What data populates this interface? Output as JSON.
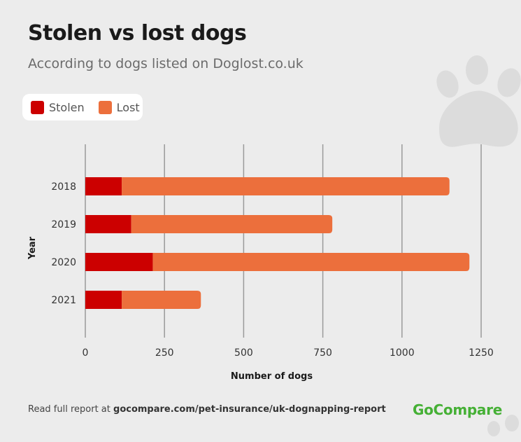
{
  "title": "Stolen vs lost dogs",
  "subtitle": "According to dogs listed on Doglost.co.uk",
  "legend": [
    {
      "label": "Stolen",
      "color": "#cc0000"
    },
    {
      "label": "Lost",
      "color": "#ec6f3c"
    }
  ],
  "footer": {
    "prefix": "Read full report at ",
    "link": "gocompare.com/pet-insurance/uk-dognapping-report"
  },
  "brand": "GoCompare",
  "decorative_icons": [
    "paw-print-icon"
  ],
  "chart_data": {
    "type": "bar",
    "orientation": "horizontal",
    "stacked": true,
    "title": "Stolen vs lost dogs",
    "subtitle": "According to dogs listed on Doglost.co.uk",
    "xlabel": "Number of dogs",
    "ylabel": "Year",
    "categories": [
      "2018",
      "2019",
      "2020",
      "2021"
    ],
    "series": [
      {
        "name": "Stolen",
        "color": "#cc0000",
        "values": [
          115,
          145,
          213,
          115
        ]
      },
      {
        "name": "Lost",
        "color": "#ec6f3c",
        "values": [
          1035,
          635,
          1000,
          250
        ]
      }
    ],
    "xticks": [
      "0",
      "250",
      "500",
      "750",
      "1000",
      "1250"
    ],
    "xlim": [
      0,
      1250
    ],
    "grid": "vertical",
    "legend_position": "top-left"
  }
}
